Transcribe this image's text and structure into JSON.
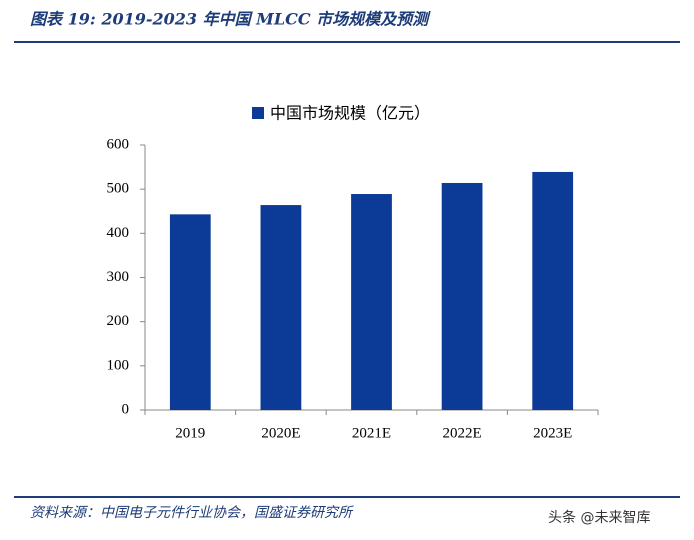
{
  "chart_data": {
    "type": "bar",
    "title": "图表 19:  2019-2023 年中国 MLCC 市场规模及预测",
    "categories": [
      "2019",
      "2020E",
      "2021E",
      "2022E",
      "2023E"
    ],
    "series": [
      {
        "name": "中国市场规模（亿元）",
        "color": "#0b3b96",
        "values": [
          443,
          464,
          489,
          514,
          539
        ]
      }
    ],
    "ylim": [
      0,
      600
    ],
    "yticks": [
      0,
      100,
      200,
      300,
      400,
      500,
      600
    ],
    "source": "资料来源：中国电子元件行业协会，国盛证券研究所",
    "watermark": "头条 @未来智库"
  }
}
